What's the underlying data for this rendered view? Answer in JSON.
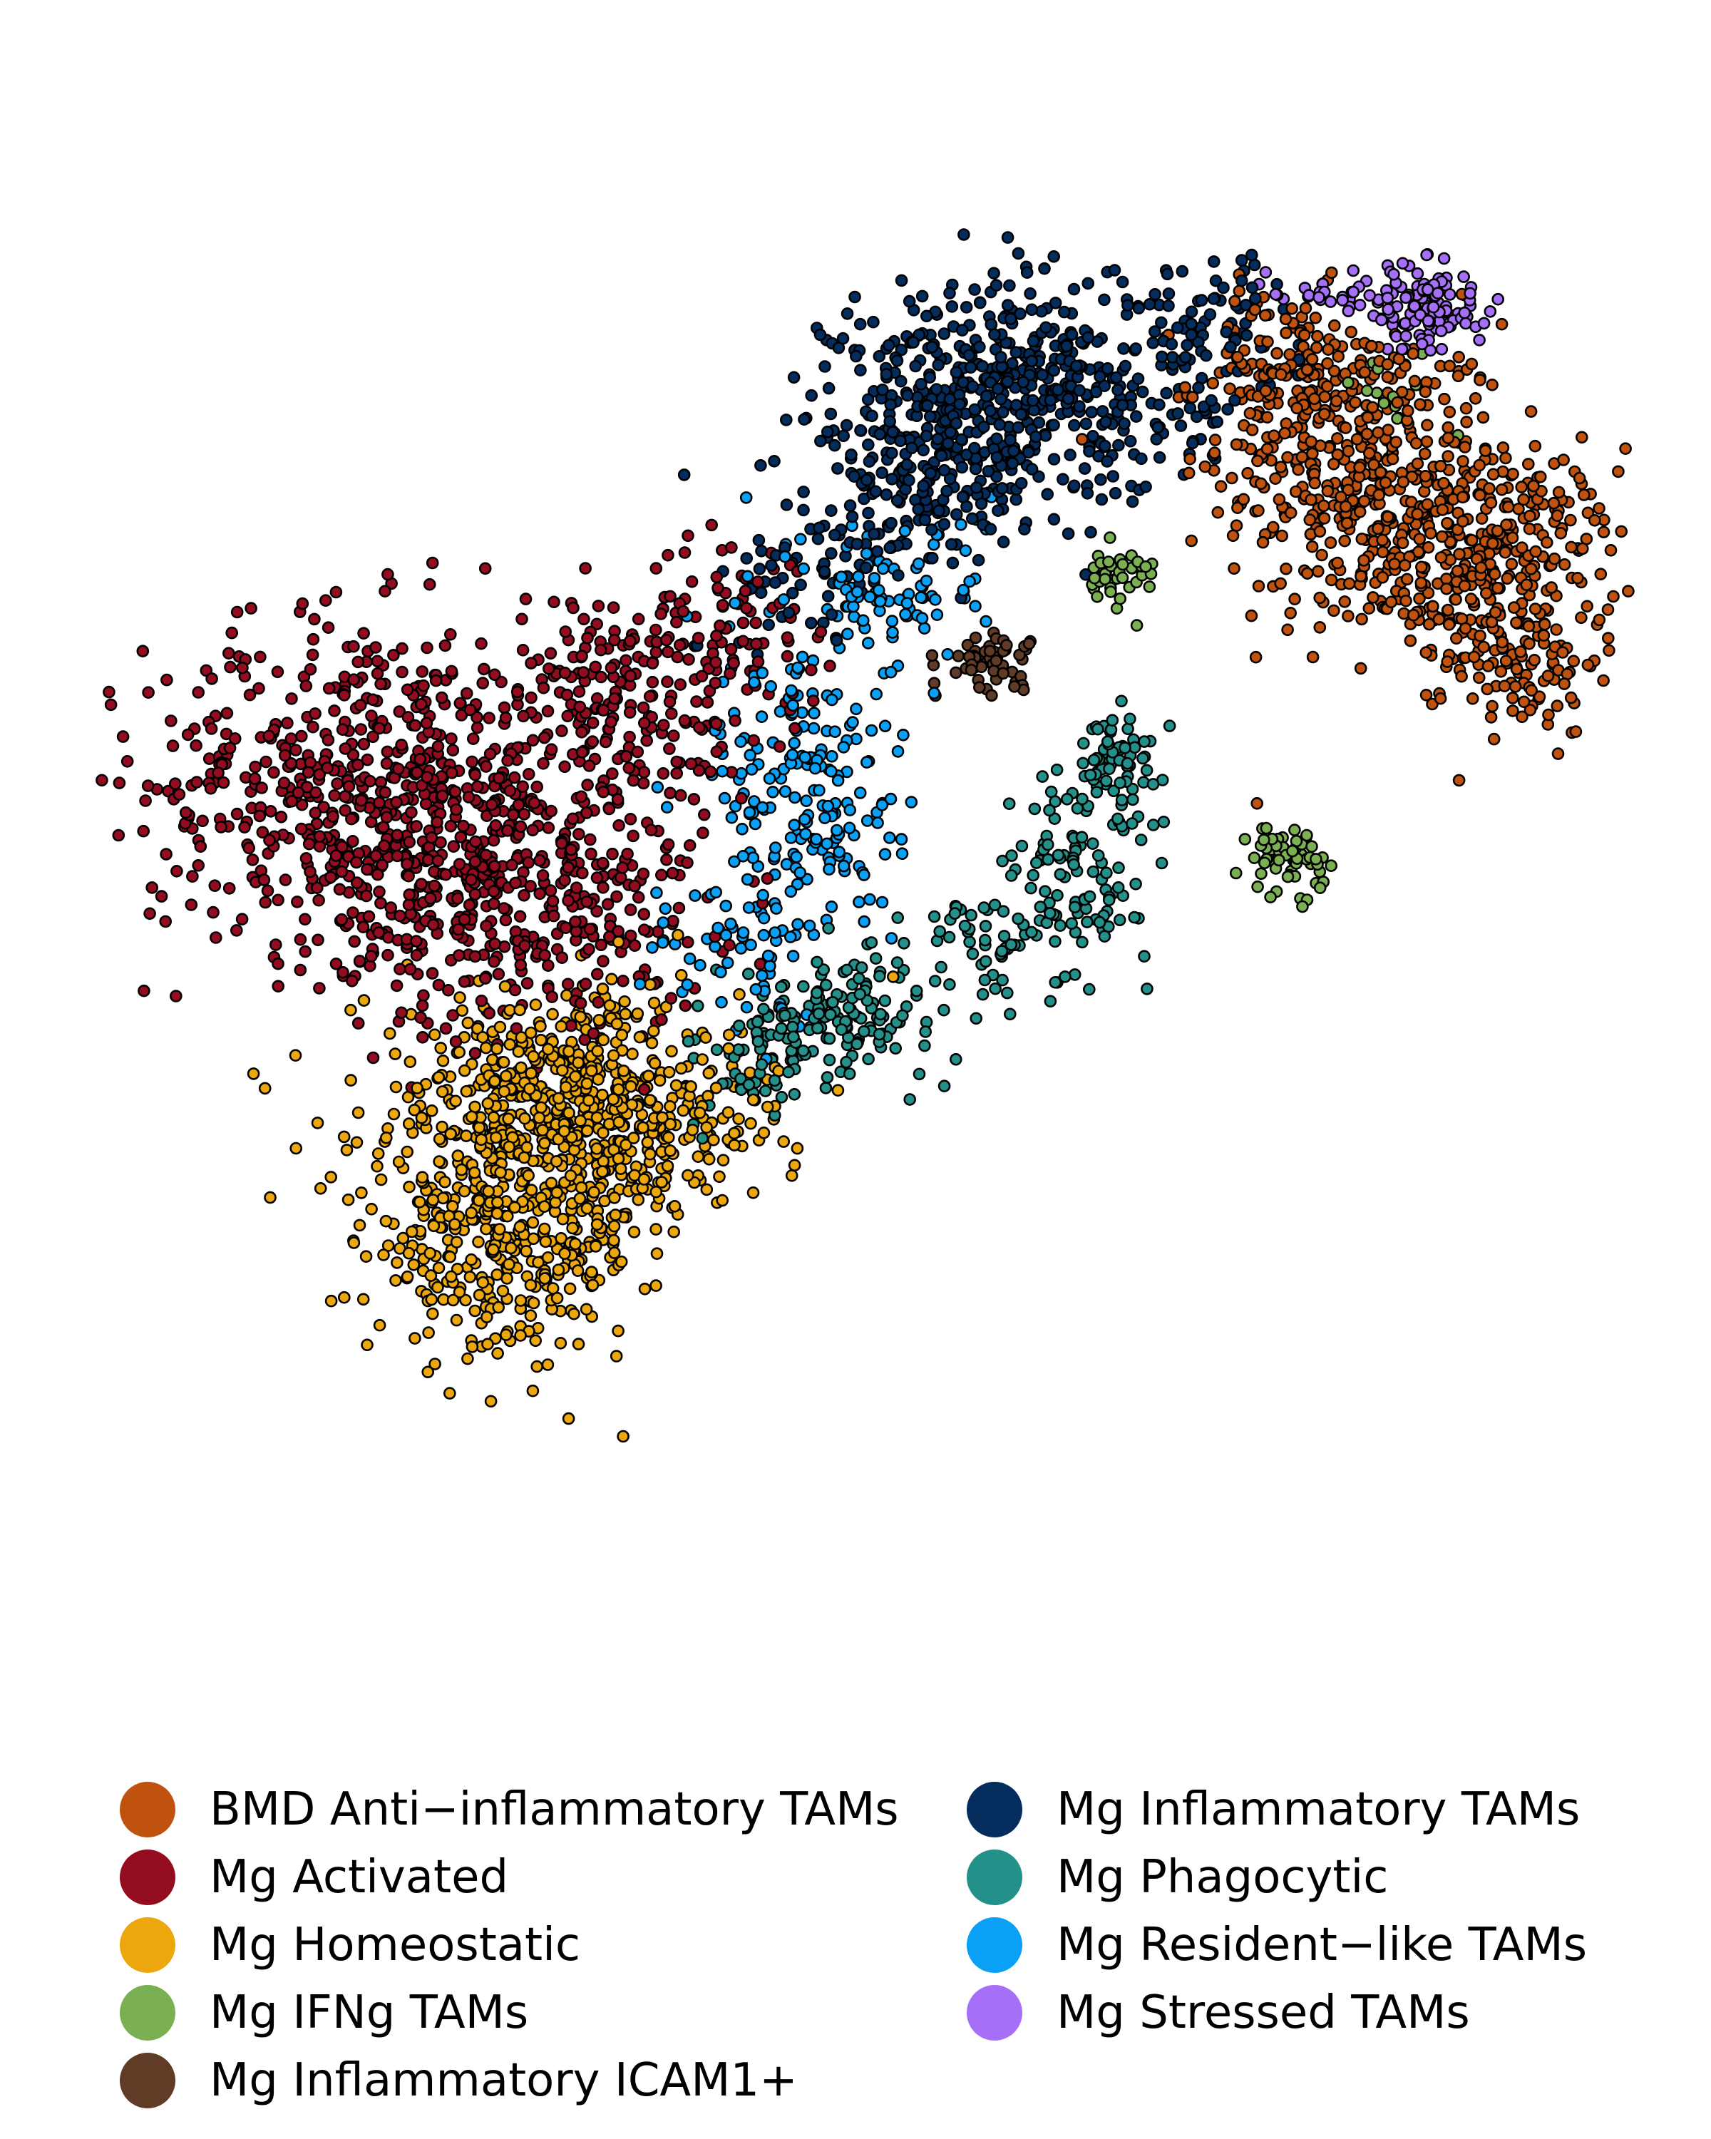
{
  "chart_data": {
    "type": "scatter",
    "title": "",
    "xlabel": "",
    "ylabel": "",
    "axes_visible": false,
    "grid": false,
    "legend_position": "bottom",
    "legend_columns": 2,
    "marker_edge_color": "#000000",
    "xlim": [
      0,
      100
    ],
    "ylim": [
      0,
      100
    ],
    "series": [
      {
        "name": "BMD Anti−inflammatory TAMs",
        "color": "#c0520f",
        "clusters": [
          {
            "cx": 82,
            "cy": 78,
            "sx": 4.5,
            "sy": 5.5,
            "n": 380
          },
          {
            "cx": 90,
            "cy": 72,
            "sx": 4,
            "sy": 4,
            "n": 320
          },
          {
            "cx": 77,
            "cy": 85,
            "sx": 3,
            "sy": 3,
            "n": 140
          },
          {
            "cx": 92,
            "cy": 65,
            "sx": 2.5,
            "sy": 2.5,
            "n": 90
          }
        ]
      },
      {
        "name": "Mg Activated",
        "color": "#930c1f",
        "clusters": [
          {
            "cx": 18,
            "cy": 56,
            "sx": 7,
            "sy": 6,
            "n": 620
          },
          {
            "cx": 28,
            "cy": 48,
            "sx": 6,
            "sy": 5,
            "n": 380
          },
          {
            "cx": 34,
            "cy": 62,
            "sx": 4.5,
            "sy": 4,
            "n": 200
          },
          {
            "cx": 42,
            "cy": 68,
            "sx": 3,
            "sy": 3,
            "n": 80
          }
        ]
      },
      {
        "name": "Mg Homeostatic",
        "color": "#eca70f",
        "clusters": [
          {
            "cx": 30,
            "cy": 34,
            "sx": 6,
            "sy": 4,
            "n": 500
          },
          {
            "cx": 27,
            "cy": 24,
            "sx": 4.5,
            "sy": 4,
            "n": 380
          },
          {
            "cx": 35,
            "cy": 31,
            "sx": 4,
            "sy": 3,
            "n": 160
          }
        ]
      },
      {
        "name": "Mg IFNg TAMs",
        "color": "#7bb052",
        "clusters": [
          {
            "cx": 77,
            "cy": 51,
            "sx": 1.2,
            "sy": 1.2,
            "n": 60
          },
          {
            "cx": 66,
            "cy": 71,
            "sx": 1.3,
            "sy": 1.0,
            "n": 40
          },
          {
            "cx": 84,
            "cy": 84,
            "sx": 1.5,
            "sy": 1.5,
            "n": 15
          }
        ]
      },
      {
        "name": "Mg Inflammatory ICAM1+",
        "color": "#603b26",
        "clusters": [
          {
            "cx": 58,
            "cy": 65,
            "sx": 1.5,
            "sy": 1.0,
            "n": 55
          }
        ]
      },
      {
        "name": "Mg Inflammatory TAMs",
        "color": "#042d5e",
        "clusters": [
          {
            "cx": 60,
            "cy": 84,
            "sx": 6,
            "sy": 4,
            "n": 500
          },
          {
            "cx": 54,
            "cy": 78,
            "sx": 3.5,
            "sy": 3,
            "n": 180
          },
          {
            "cx": 47,
            "cy": 71,
            "sx": 3,
            "sy": 2.5,
            "n": 60
          },
          {
            "cx": 72,
            "cy": 89,
            "sx": 3,
            "sy": 2.5,
            "n": 70
          }
        ]
      },
      {
        "name": "Mg Phagocytic",
        "color": "#24908a",
        "clusters": [
          {
            "cx": 48,
            "cy": 40,
            "sx": 3,
            "sy": 2,
            "n": 140
          },
          {
            "cx": 66,
            "cy": 58,
            "sx": 1.6,
            "sy": 1.6,
            "n": 70
          },
          {
            "cx": 64,
            "cy": 50,
            "sx": 2,
            "sy": 3,
            "n": 90
          },
          {
            "cx": 57,
            "cy": 45,
            "sx": 3,
            "sy": 3,
            "n": 70
          },
          {
            "cx": 43,
            "cy": 36,
            "sx": 2,
            "sy": 2,
            "n": 40
          }
        ]
      },
      {
        "name": "Mg Resident−like TAMs",
        "color": "#0aa0f6",
        "clusters": [
          {
            "cx": 46,
            "cy": 56,
            "sx": 3,
            "sy": 6,
            "n": 210
          },
          {
            "cx": 52,
            "cy": 70,
            "sx": 3,
            "sy": 3,
            "n": 90
          },
          {
            "cx": 42,
            "cy": 44,
            "sx": 3,
            "sy": 3,
            "n": 50
          }
        ]
      },
      {
        "name": "Mg Stressed TAMs",
        "color": "#a66ff8",
        "clusters": [
          {
            "cx": 86,
            "cy": 90,
            "sx": 1.8,
            "sy": 1.6,
            "n": 110
          },
          {
            "cx": 80,
            "cy": 91,
            "sx": 2,
            "sy": 1,
            "n": 25
          }
        ]
      }
    ]
  }
}
